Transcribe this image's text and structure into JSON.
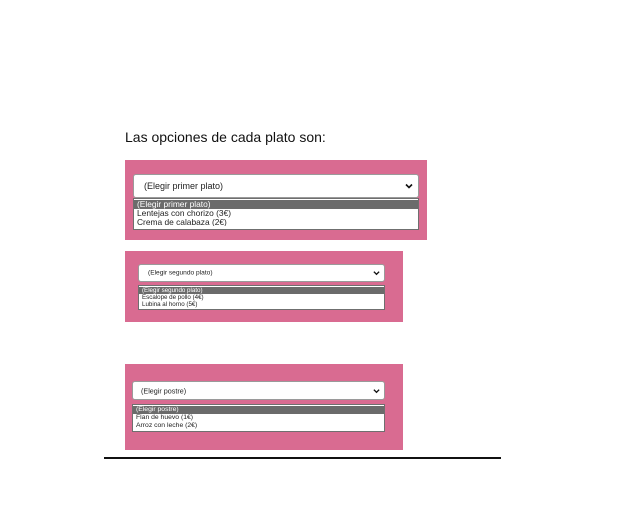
{
  "intro_text": "Las opciones de cada plato son:",
  "colors": {
    "panel_pink": "#d96b91",
    "selected_option": "#6b6b6b",
    "rule": "#111111"
  },
  "selects": {
    "primero": {
      "value": "(Elegir primer plato)",
      "options": [
        "(Elegir primer plato)",
        "Lentejas con chorizo (3€)",
        "Crema de calabaza (2€)"
      ],
      "selected_index": 0
    },
    "segundo": {
      "value": "(Elegir segundo plato)",
      "options": [
        "(Elegir segundo plato)",
        "Escalope de pollo (4€)",
        "Lubina al horno (5€)"
      ],
      "selected_index": 0
    },
    "postre": {
      "value": "(Elegir postre)",
      "options": [
        "(Elegir postre)",
        "Flan de huevo (1€)",
        "Arroz con leche (2€)"
      ],
      "selected_index": 0
    }
  },
  "icons": {
    "select_arrow": "chevron-down-icon"
  }
}
